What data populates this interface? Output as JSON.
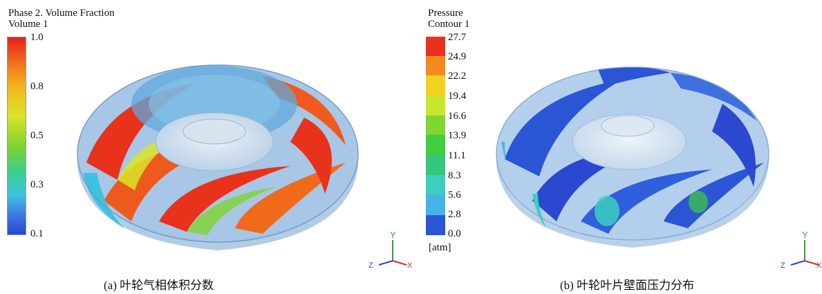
{
  "panel_a": {
    "legend_title_line1": "Phase 2. Volume Fraction",
    "legend_title_line2": "Volume 1",
    "ticks": [
      "1.0",
      "0.8",
      "0.5",
      "0.3",
      "0.1"
    ],
    "caption": "(a)  叶轮气相体积分数",
    "axis_labels": {
      "y": "Y",
      "z": "Z",
      "x": "X"
    }
  },
  "panel_b": {
    "legend_title_line1": "Pressure",
    "legend_title_line2": "Contour 1",
    "ticks": [
      "27.7",
      "24.9",
      "22.2",
      "19.4",
      "16.6",
      "13.9",
      "11.1",
      "8.3",
      "5.6",
      "2.8",
      "0.0"
    ],
    "unit": "[atm]",
    "caption": "(b)  叶轮叶片壁面压力分布",
    "axis_labels": {
      "y": "Y",
      "z": "Z",
      "x": "X"
    }
  },
  "colors": {
    "triad_y": "#2e9e3a",
    "triad_x": "#d42a2a",
    "triad_z": "#2a3fcf",
    "pressure_bands": [
      "#e8321c",
      "#f38a1e",
      "#f4d11f",
      "#c8e62a",
      "#7ed62f",
      "#3fcf3f",
      "#32c77a",
      "#3ccfc0",
      "#46b3e6",
      "#3d82e8",
      "#2a56d6"
    ]
  }
}
